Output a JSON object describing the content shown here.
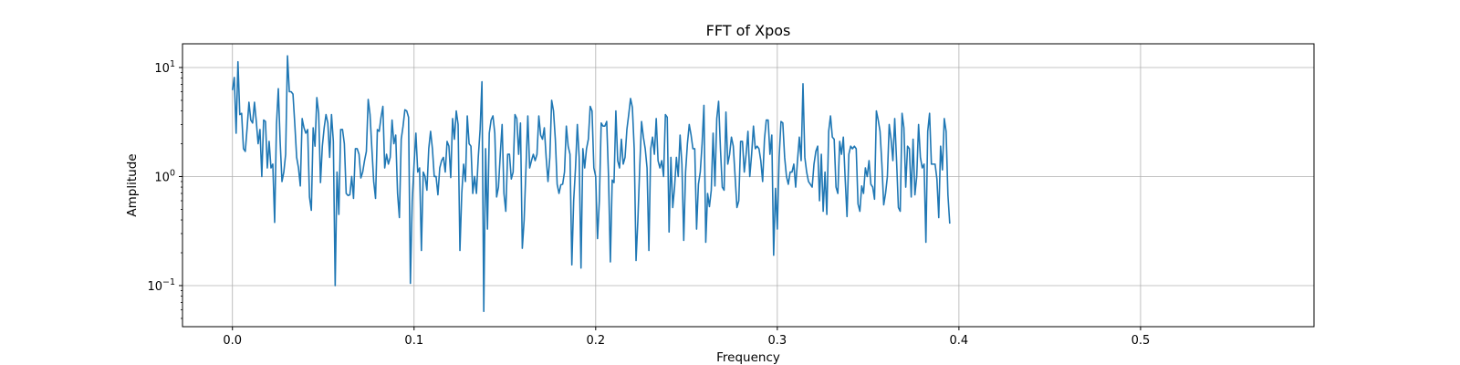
{
  "chart_data": {
    "type": "line",
    "title": "FFT of Xpos",
    "xlabel": "Frequency",
    "ylabel": "Amplitude",
    "xlim": [
      -0.0275,
      0.5955
    ],
    "ylim_log": [
      0.042,
      16.5
    ],
    "yscale": "log",
    "grid": true,
    "line_color": "#1f77b4",
    "x_ticks": [
      {
        "value": 0.0,
        "label": "0.0"
      },
      {
        "value": 0.1,
        "label": "0.1"
      },
      {
        "value": 0.2,
        "label": "0.2"
      },
      {
        "value": 0.3,
        "label": "0.3"
      },
      {
        "value": 0.4,
        "label": "0.4"
      },
      {
        "value": 0.5,
        "label": "0.5"
      }
    ],
    "y_ticks": [
      {
        "value": 0.1,
        "base": "10",
        "exp": "−1"
      },
      {
        "value": 1,
        "base": "10",
        "exp": "0"
      },
      {
        "value": 10,
        "base": "10",
        "exp": "1"
      }
    ],
    "x_start": 0,
    "x_step": 0.0010101,
    "y": [
      6.2,
      8.1,
      2.5,
      11.3,
      3.7,
      3.8,
      1.8,
      1.7,
      2.8,
      4.8,
      3.3,
      3.1,
      4.8,
      3.2,
      2.0,
      2.7,
      1.0,
      3.3,
      3.2,
      1.2,
      2.1,
      1.2,
      1.3,
      0.38,
      3.0,
      6.4,
      2.1,
      0.9,
      1.1,
      1.6,
      12.8,
      6.0,
      6.0,
      5.7,
      3.0,
      1.5,
      1.2,
      0.82,
      3.4,
      2.8,
      2.5,
      2.7,
      0.65,
      0.49,
      2.8,
      1.9,
      5.3,
      3.8,
      0.88,
      1.9,
      2.8,
      3.7,
      3.1,
      1.5,
      3.7,
      2.1,
      0.1,
      1.1,
      0.45,
      2.7,
      2.7,
      2.0,
      0.7,
      0.67,
      0.68,
      1.0,
      0.63,
      1.8,
      1.8,
      1.6,
      0.97,
      1.1,
      1.4,
      1.7,
      5.1,
      3.7,
      1.8,
      0.9,
      0.63,
      2.7,
      2.6,
      3.5,
      4.4,
      1.2,
      1.6,
      1.3,
      1.5,
      3.3,
      2.0,
      2.4,
      0.7,
      0.42,
      2.2,
      2.9,
      4.1,
      4.0,
      3.5,
      0.105,
      0.6,
      1.3,
      2.5,
      1.1,
      1.2,
      0.21,
      1.1,
      1.0,
      0.75,
      1.8,
      2.6,
      1.8,
      1.0,
      1.0,
      0.68,
      1.2,
      1.4,
      1.5,
      1.1,
      2.1,
      1.9,
      0.98,
      3.4,
      2.2,
      4.0,
      3.0,
      0.21,
      0.7,
      1.3,
      0.9,
      3.6,
      2.0,
      1.9,
      0.7,
      1.0,
      0.7,
      1.5,
      2.7,
      7.4,
      0.058,
      1.8,
      0.33,
      2.5,
      3.3,
      3.6,
      2.5,
      0.65,
      0.8,
      1.6,
      3.0,
      0.7,
      0.48,
      1.6,
      1.6,
      0.95,
      1.1,
      3.7,
      3.4,
      1.6,
      3.1,
      0.22,
      0.4,
      1.2,
      3.6,
      1.2,
      1.4,
      1.6,
      1.4,
      1.6,
      3.6,
      2.4,
      2.2,
      2.8,
      1.5,
      0.9,
      1.5,
      5.0,
      4.0,
      2.2,
      0.85,
      0.7,
      0.84,
      0.85,
      1.1,
      2.9,
      1.9,
      1.6,
      0.155,
      0.6,
      1.2,
      3.0,
      1.5,
      0.145,
      1.8,
      1.2,
      1.8,
      2.2,
      4.4,
      4.0,
      1.2,
      1.0,
      0.27,
      0.6,
      3.1,
      2.9,
      2.9,
      3.2,
      1.0,
      0.165,
      0.93,
      0.88,
      4.0,
      1.4,
      1.2,
      2.2,
      1.3,
      1.5,
      2.7,
      3.7,
      5.2,
      4.3,
      1.8,
      0.17,
      0.4,
      1.2,
      3.2,
      2.3,
      1.8,
      1.2,
      0.21,
      1.8,
      2.3,
      1.6,
      3.4,
      1.4,
      1.2,
      1.4,
      1.0,
      3.7,
      3.5,
      0.31,
      1.5,
      0.52,
      0.8,
      1.5,
      1.0,
      2.4,
      1.3,
      0.26,
      1.1,
      2.0,
      3.0,
      2.4,
      1.8,
      1.8,
      0.33,
      0.85,
      1.1,
      2.0,
      4.5,
      0.25,
      0.7,
      0.53,
      0.75,
      2.5,
      0.82,
      3.4,
      4.9,
      1.8,
      0.8,
      0.75,
      3.9,
      1.3,
      1.6,
      2.3,
      1.9,
      1.0,
      0.52,
      0.6,
      2.1,
      2.1,
      1.1,
      1.6,
      2.6,
      1.0,
      1.6,
      2.9,
      1.8,
      1.9,
      1.8,
      1.4,
      0.9,
      2.2,
      3.3,
      3.3,
      1.6,
      2.4,
      0.19,
      0.78,
      0.33,
      1.5,
      3.2,
      3.1,
      1.5,
      1.0,
      0.85,
      1.1,
      1.1,
      1.3,
      0.8,
      1.4,
      2.3,
      1.4,
      7.1,
      1.5,
      1.1,
      0.9,
      0.85,
      0.8,
      1.3,
      1.7,
      1.9,
      0.6,
      1.6,
      0.48,
      1.1,
      0.45,
      2.6,
      3.6,
      2.3,
      2.2,
      0.8,
      0.7,
      2.1,
      1.6,
      2.3,
      0.95,
      0.43,
      1.6,
      1.9,
      1.8,
      1.9,
      1.8,
      0.56,
      0.48,
      0.82,
      0.7,
      1.2,
      1.0,
      1.4,
      0.85,
      0.8,
      0.62,
      4.0,
      3.3,
      2.6,
      1.3,
      0.55,
      0.7,
      1.0,
      3.0,
      2.2,
      1.4,
      3.4,
      1.4,
      0.52,
      0.48,
      3.8,
      2.8,
      0.8,
      1.9,
      1.8,
      0.65,
      2.2,
      0.68,
      1.0,
      3.0,
      1.5,
      1.2,
      1.3,
      0.25,
      2.6,
      3.8,
      1.3,
      1.3,
      1.3,
      0.95,
      0.42,
      1.9,
      1.15,
      3.4,
      2.6,
      0.68,
      0.37
    ]
  }
}
